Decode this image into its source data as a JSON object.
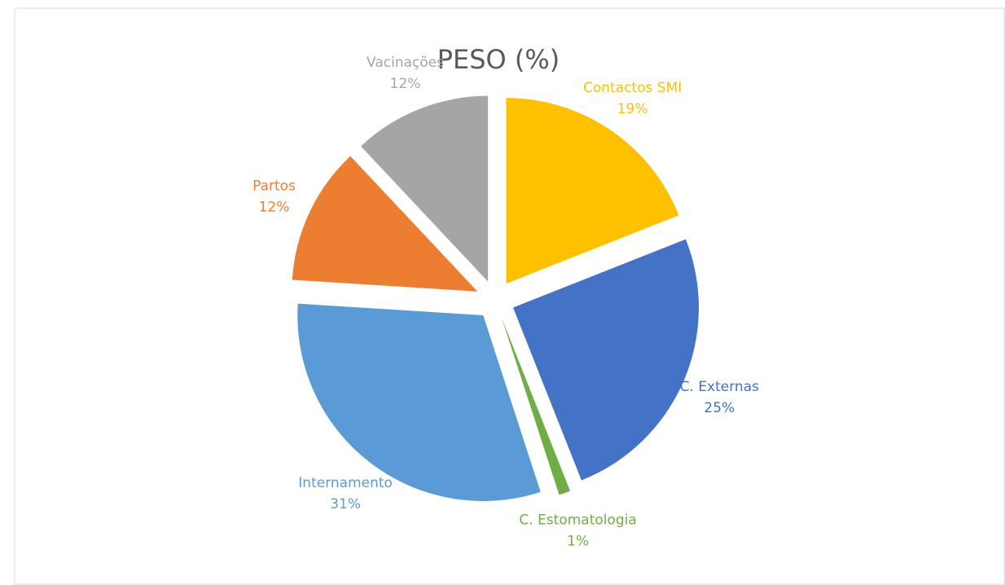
{
  "chart_data": {
    "type": "pie",
    "title": "PESO (%)",
    "categories": [
      "Contactos SMI",
      "C. Externas",
      "C. Estomatologia",
      "Internamento",
      "Partos",
      "Vacinações"
    ],
    "values": [
      19,
      25,
      1,
      31,
      12,
      12
    ],
    "value_labels": [
      "19%",
      "25%",
      "1%",
      "31%",
      "12%",
      "12%"
    ],
    "colors": [
      "#FFC000",
      "#4472C4",
      "#70AD47",
      "#5B9BD5",
      "#ED7D31",
      "#A5A5A5"
    ]
  }
}
